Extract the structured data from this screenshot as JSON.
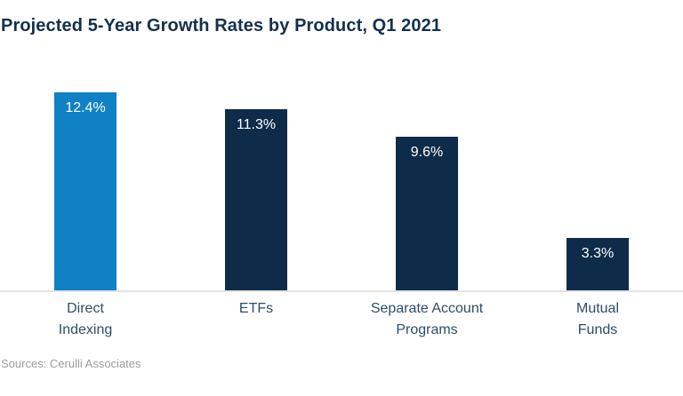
{
  "title": "Projected 5-Year Growth Rates by Product, Q1 2021",
  "source": "Sources: Cerulli Associates",
  "colors": {
    "highlight_bar": "#0f81c4",
    "default_bar": "#0e2c4a",
    "title_text": "#14304d",
    "axis_label_text": "#2e4d68",
    "value_label_text": "#ffffff",
    "baseline": "#e4e4e4",
    "source_text": "#9c9c9c"
  },
  "chart_data": {
    "type": "bar",
    "title": "Projected 5-Year Growth Rates by Product, Q1 2021",
    "categories": [
      "Direct Indexing",
      "ETFs",
      "Separate Account Programs",
      "Mutual Funds"
    ],
    "values": [
      12.4,
      11.3,
      9.6,
      3.3
    ],
    "value_labels": [
      "12.4%",
      "11.3%",
      "9.6%",
      "3.3%"
    ],
    "category_lines": [
      [
        "Direct",
        "Indexing"
      ],
      [
        "ETFs"
      ],
      [
        "Separate Account",
        "Programs"
      ],
      [
        "Mutual",
        "Funds"
      ]
    ],
    "highlighted_index": 0,
    "xlabel": "",
    "ylabel": "",
    "ylim": [
      0,
      13.4
    ],
    "grid": false,
    "legend": false,
    "value_label_position": "inside-top",
    "source": "Sources: Cerulli Associates"
  }
}
